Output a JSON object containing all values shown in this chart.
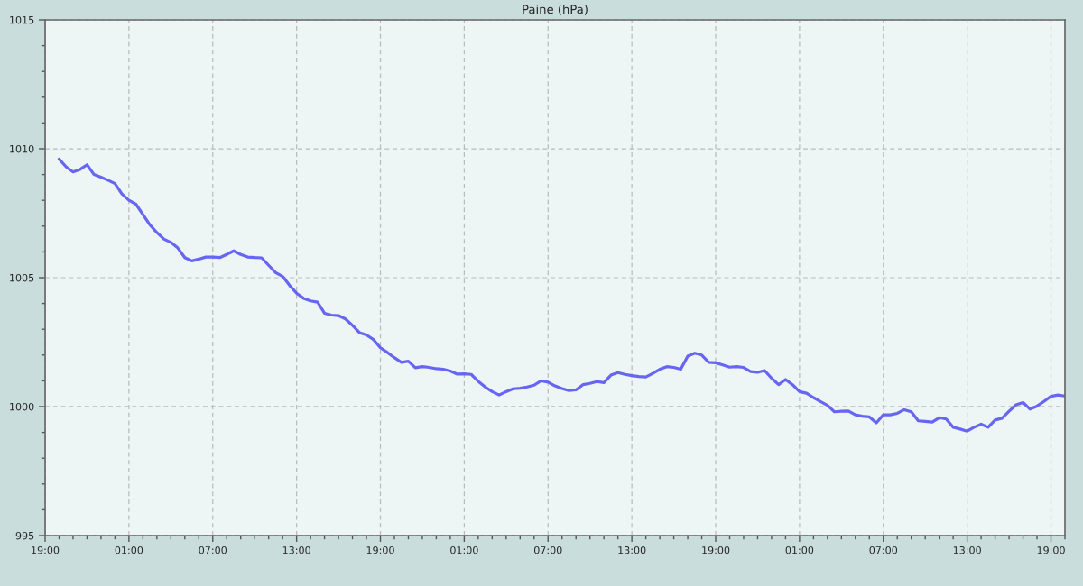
{
  "chart_data": {
    "type": "line",
    "title": "Paine (hPa)",
    "categories": [
      "19:00",
      null,
      null,
      null,
      null,
      null,
      null,
      null,
      null,
      null,
      null,
      null,
      "01:00",
      null,
      null,
      null,
      null,
      null,
      null,
      null,
      null,
      null,
      null,
      null,
      "07:00",
      null,
      null,
      null,
      null,
      null,
      null,
      null,
      null,
      null,
      null,
      null,
      "13:00",
      null,
      null,
      null,
      null,
      null,
      null,
      null,
      null,
      null,
      null,
      null,
      "19:00",
      null,
      null,
      null,
      null,
      null,
      null,
      null,
      null,
      null,
      null,
      null,
      "01:00",
      null,
      null,
      null,
      null,
      null,
      null,
      null,
      null,
      null,
      null,
      null,
      "07:00",
      null,
      null,
      null,
      null,
      null,
      null,
      null,
      null,
      null,
      null,
      null,
      "13:00",
      null,
      null,
      null,
      null,
      null,
      null,
      null,
      null,
      null,
      null,
      null,
      "19:00",
      null,
      null,
      null,
      null,
      null,
      null,
      null,
      null,
      null,
      null,
      null,
      "01:00",
      null,
      null,
      null,
      null,
      null,
      null,
      null,
      null,
      null,
      null,
      null,
      "07:00",
      null,
      null,
      null,
      null,
      null,
      null,
      null,
      null,
      null,
      null,
      null,
      "13:00",
      null,
      null,
      null,
      null,
      null,
      null,
      null,
      null,
      null,
      null,
      null,
      "19:00",
      null,
      null
    ],
    "series": [
      {
        "color": "#6666f2",
        "values": [
          null,
          null,
          1009.6,
          1009.3,
          1009.1,
          1009.2,
          1009.38,
          1009.0,
          1008.9,
          1008.78,
          1008.65,
          1008.25,
          1008.0,
          1007.85,
          1007.45,
          1007.05,
          1006.75,
          1006.5,
          1006.37,
          1006.15,
          1005.78,
          1005.65,
          1005.72,
          1005.8,
          1005.8,
          1005.78,
          1005.9,
          1006.04,
          1005.9,
          1005.8,
          1005.78,
          1005.77,
          1005.48,
          1005.2,
          1005.05,
          1004.7,
          1004.4,
          1004.2,
          1004.1,
          1004.05,
          1003.62,
          1003.55,
          1003.53,
          1003.4,
          1003.15,
          1002.87,
          1002.78,
          1002.6,
          1002.28,
          1002.1,
          1001.9,
          1001.72,
          1001.76,
          1001.51,
          1001.55,
          1001.52,
          1001.47,
          1001.45,
          1001.38,
          1001.26,
          1001.27,
          1001.25,
          1000.98,
          1000.76,
          1000.58,
          1000.45,
          1000.58,
          1000.69,
          1000.71,
          1000.76,
          1000.83,
          1001.0,
          1000.95,
          1000.8,
          1000.7,
          1000.62,
          1000.65,
          1000.85,
          1000.9,
          1000.97,
          1000.93,
          1001.22,
          1001.32,
          1001.25,
          1001.2,
          1001.17,
          1001.15,
          1001.29,
          1001.45,
          1001.55,
          1001.52,
          1001.45,
          1001.96,
          1002.07,
          1002.0,
          1001.72,
          1001.7,
          1001.62,
          1001.53,
          1001.55,
          1001.52,
          1001.36,
          1001.33,
          1001.4,
          1001.1,
          1000.85,
          1001.05,
          1000.85,
          1000.58,
          1000.52,
          1000.35,
          1000.2,
          1000.05,
          999.8,
          999.82,
          999.83,
          999.68,
          999.63,
          999.6,
          999.37,
          999.68,
          999.68,
          999.74,
          999.88,
          999.8,
          999.45,
          999.43,
          999.4,
          999.57,
          999.52,
          999.2,
          999.13,
          999.05,
          999.2,
          999.32,
          999.2,
          999.48,
          999.55,
          999.82,
          1000.07,
          1000.16,
          999.9,
          1000.02,
          1000.2,
          1000.4,
          1000.45,
          1000.41
        ]
      }
    ],
    "ylim": [
      995,
      1015
    ],
    "yticks": [
      995,
      {
        "value": 996,
        "label": null
      },
      {
        "value": 997,
        "label": null
      },
      {
        "value": 998,
        "label": null
      },
      {
        "value": 999,
        "label": null
      },
      1000,
      {
        "value": 1001,
        "label": null
      },
      {
        "value": 1002,
        "label": null
      },
      {
        "value": 1003,
        "label": null
      },
      {
        "value": 1004,
        "label": null
      },
      1005,
      {
        "value": 1006,
        "label": null
      },
      {
        "value": 1007,
        "label": null
      },
      {
        "value": 1008,
        "label": null
      },
      {
        "value": 1009,
        "label": null
      },
      1010,
      {
        "value": 1011,
        "label": null
      },
      {
        "value": 1012,
        "label": null
      },
      {
        "value": 1013,
        "label": null
      },
      {
        "value": 1014,
        "label": null
      },
      1015
    ],
    "grid": true
  }
}
